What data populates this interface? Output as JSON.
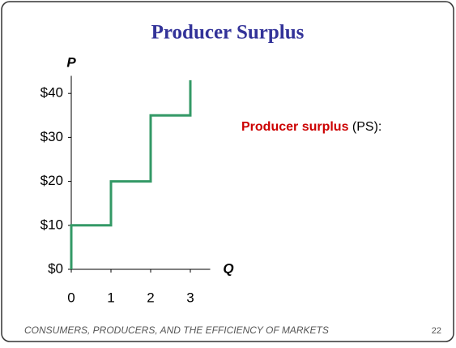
{
  "chart_data": {
    "type": "line",
    "title": "Producer Surplus",
    "y_label": "P",
    "x_label": "Q",
    "annotation": {
      "bold": "Producer surplus",
      "rest": " (PS):"
    },
    "footer": "CONSUMERS, PRODUCERS, AND THE EFFICIENCY OF MARKETS",
    "page_number": "22",
    "x": [
      0,
      0,
      1,
      1,
      2,
      2,
      3,
      3
    ],
    "series": [
      {
        "color": "#339966",
        "values": [
          0,
          10,
          10,
          20,
          20,
          35,
          35,
          43
        ]
      }
    ],
    "xlim": [
      0,
      3.5
    ],
    "ylim": [
      0,
      44
    ],
    "xticks": [
      0,
      1,
      2,
      3
    ],
    "yticks": [
      {
        "value": 0,
        "label": "$0"
      },
      {
        "value": 10,
        "label": "$10"
      },
      {
        "value": 20,
        "label": "$20"
      },
      {
        "value": 30,
        "label": "$30"
      },
      {
        "value": 40,
        "label": "$40"
      }
    ]
  }
}
